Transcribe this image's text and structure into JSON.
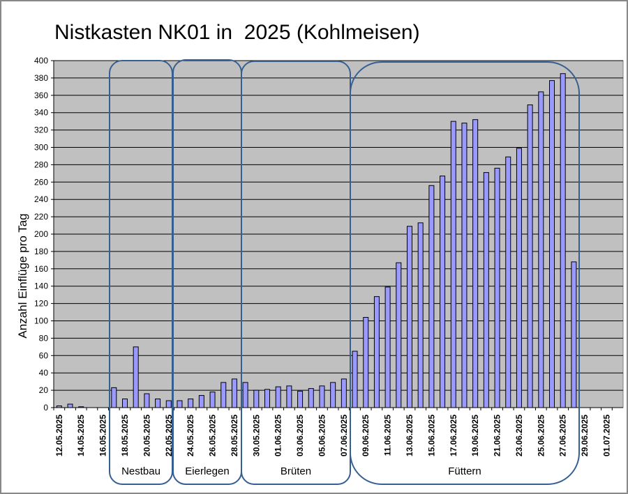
{
  "chart_data": {
    "type": "bar",
    "title": "Nistkasten NK01 in  2025 (Kohlmeisen)",
    "y_label": "Anzahl Einflüge pro Tag",
    "categories": [
      "12.05.2025",
      null,
      "14.05.2025",
      null,
      "16.05.2025",
      null,
      "18.05.2025",
      null,
      "20.05.2025",
      null,
      "22.05.2025",
      null,
      "24.05.2025",
      null,
      "26.05.2025",
      null,
      "28.05.2025",
      null,
      "30.05.2025",
      null,
      "01.06.2025",
      null,
      "03.06.2025",
      null,
      "05.06.2025",
      null,
      "07.06.2025",
      null,
      "09.06.2025",
      null,
      "11.06.2025",
      null,
      "13.06.2025",
      null,
      "15.06.2025",
      null,
      "17.06.2025",
      null,
      "19.06.2025",
      null,
      "21.06.2025",
      null,
      "23.06.2025",
      null,
      "25.06.2025",
      null,
      "27.06.2025",
      null,
      "29.06.2025",
      null,
      "01.07.2025",
      null
    ],
    "values": [
      2,
      4,
      1,
      null,
      null,
      23,
      10,
      70,
      16,
      10,
      8,
      8,
      10,
      14,
      18,
      29,
      33,
      29,
      20,
      21,
      24,
      25,
      19,
      22,
      25,
      29,
      33,
      65,
      104,
      128,
      139,
      167,
      209,
      213,
      256,
      267,
      330,
      328,
      332,
      271,
      276,
      289,
      299,
      349,
      364,
      377,
      385,
      168,
      null,
      null,
      null,
      null
    ],
    "color": "#9999ff",
    "ylim": [
      0,
      400
    ],
    "yticks": [
      0,
      20,
      40,
      60,
      80,
      100,
      120,
      140,
      160,
      180,
      200,
      220,
      240,
      260,
      280,
      300,
      320,
      340,
      360,
      380,
      400
    ],
    "grid": true,
    "annotations": [
      "Nestbau",
      "Eierlegen",
      "Brüten",
      "Füttern"
    ]
  }
}
